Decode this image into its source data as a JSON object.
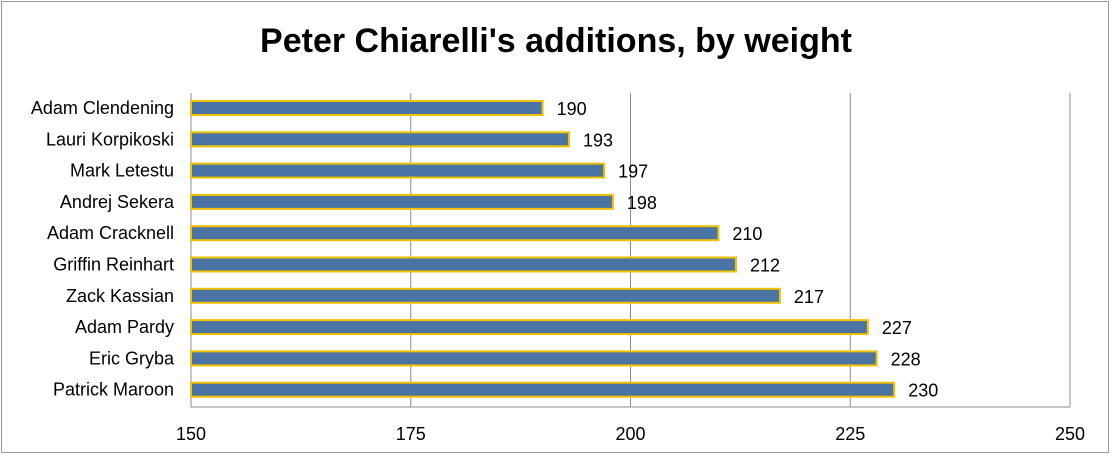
{
  "chart_data": {
    "type": "bar",
    "orientation": "horizontal",
    "title": "Peter Chiarelli's additions, by weight",
    "categories": [
      "Adam Clendening",
      "Lauri Korpikoski",
      "Mark Letestu",
      "Andrej Sekera",
      "Adam Cracknell",
      "Griffin Reinhart",
      "Zack Kassian",
      "Adam Pardy",
      "Eric Gryba",
      "Patrick Maroon"
    ],
    "values": [
      190,
      193,
      197,
      198,
      210,
      212,
      217,
      227,
      228,
      230
    ],
    "xlim": [
      150,
      250
    ],
    "xticks": [
      150,
      175,
      200,
      225,
      250
    ],
    "xlabel": "",
    "ylabel": "",
    "grid": true,
    "colors": {
      "bar_fill": "#4a74a3",
      "bar_stroke": "#f2c200",
      "grid": "#8c8c8c"
    }
  }
}
